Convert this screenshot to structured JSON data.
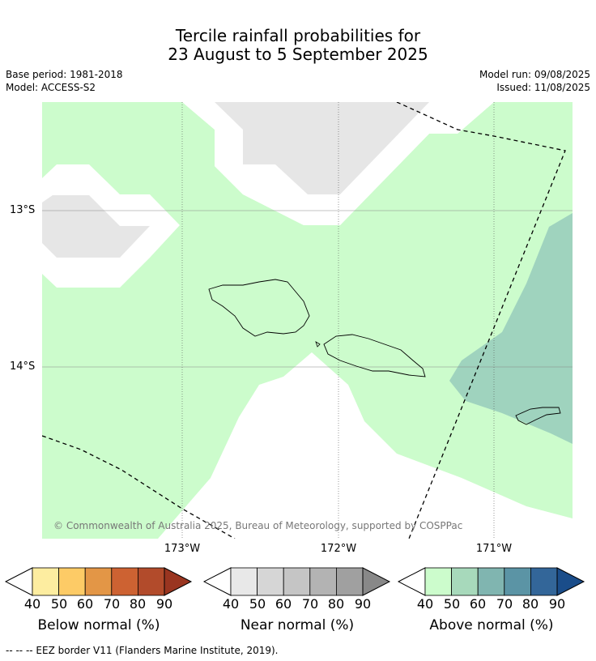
{
  "title_line1": "Tercile rainfall probabilities for",
  "title_line2": "23 August to 5 September 2025",
  "base_period": "Base period: 1981-2018",
  "model": "Model: ACCESS-S2",
  "model_run": "Model run: 09/08/2025",
  "issued": "Issued: 11/08/2025",
  "lat_labels": [
    "13°S",
    "14°S"
  ],
  "lon_labels": [
    "173°W",
    "172°W",
    "171°W"
  ],
  "copyright": "© Commonwealth of Australia 2025, Bureau of Meteorology, supported by COSPPac",
  "colorbars": [
    {
      "label": "Below normal (%)",
      "ticks": [
        "40",
        "50",
        "60",
        "70",
        "80",
        "90"
      ],
      "colors": [
        "#fdeda0",
        "#fdcb66",
        "#e39646",
        "#cd6232",
        "#b24b2b",
        "#9a3520"
      ]
    },
    {
      "label": "Near normal (%)",
      "ticks": [
        "40",
        "50",
        "60",
        "70",
        "80",
        "90"
      ],
      "colors": [
        "#e8e8e8",
        "#d6d6d6",
        "#c5c5c5",
        "#b3b3b3",
        "#a0a0a0",
        "#888888"
      ]
    },
    {
      "label": "Above normal (%)",
      "ticks": [
        "40",
        "50",
        "60",
        "70",
        "80",
        "90"
      ],
      "colors": [
        "#ccfccc",
        "#a7d9bb",
        "#80b5b0",
        "#5b94a5",
        "#336699",
        "#1a4d8a"
      ]
    }
  ],
  "footnote": "-- -- -- EEZ border V11 (Flanders Marine Institute, 2019)."
}
